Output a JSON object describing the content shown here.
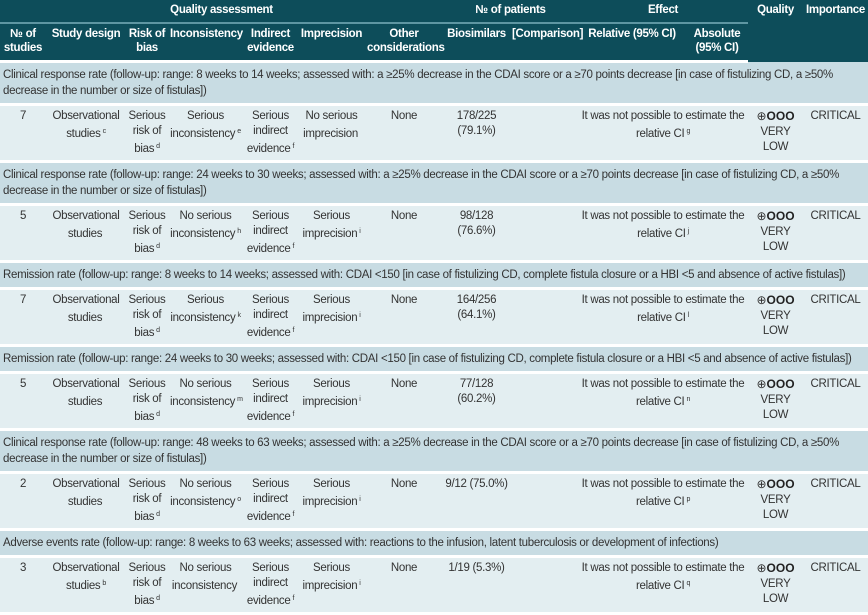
{
  "header": {
    "quality_assessment": "Quality assessment",
    "num_patients": "№ of patients",
    "effect": "Effect",
    "quality": "Quality",
    "importance": "Importance",
    "columns": [
      "№ of studies",
      "Study design",
      "Risk of bias",
      "Inconsistency",
      "Indirect evidence",
      "Imprecision",
      "Other considerations",
      "Biosimilars",
      "[Comparison]",
      "Relative (95% CI)",
      "Absolute (95% CI)"
    ]
  },
  "outcomes": [
    {
      "title": "Clinical response rate (follow-up: range: 8 weeks to 14 weeks; assessed with: a ≥25% decrease in the CDAI score or a ≥70 points decrease [in case of fistulizing CD, a ≥50% decrease in the number or size of fistulas])",
      "studies": "7",
      "design": "Observational studies",
      "design_sup": "c",
      "risk": "Serious risk of bias",
      "risk_sup": "d",
      "inconsistency": "Serious inconsistency",
      "inconsistency_sup": "e",
      "indirect": "Serious indirect evidence",
      "indirect_sup": "f",
      "imprecision": "No serious imprecision",
      "imprecision_sup": "",
      "other": "None",
      "biosimilars": "178/225 (79.1%)",
      "comparison": "",
      "relative": "It was not possible to estimate the relative CI",
      "relative_sup": "g",
      "absolute": "",
      "quality_symbol": "⊕",
      "quality_empty": "OOO",
      "quality": "VERY LOW",
      "importance": "CRITICAL"
    },
    {
      "title": "Clinical response rate (follow-up: range: 24 weeks to 30 weeks; assessed with: a ≥25% decrease in the CDAI score or a ≥70 points decrease [in case of fistulizing CD, a ≥50% decrease in the number or size of fistulas])",
      "studies": "5",
      "design": "Observational studies",
      "design_sup": "",
      "risk": "Serious risk of bias",
      "risk_sup": "d",
      "inconsistency": "No serious inconsistency",
      "inconsistency_sup": "h",
      "indirect": "Serious indirect evidence",
      "indirect_sup": "f",
      "imprecision": "Serious imprecision",
      "imprecision_sup": "i",
      "other": "None",
      "biosimilars": "98/128 (76.6%)",
      "comparison": "",
      "relative": "It was not possible to estimate the relative CI",
      "relative_sup": "j",
      "absolute": "",
      "quality_symbol": "⊕",
      "quality_empty": "OOO",
      "quality": "VERY LOW",
      "importance": "CRITICAL"
    },
    {
      "title": "Remission rate (follow-up: range: 8 weeks to 14 weeks; assessed with: CDAI <150 [in case of fistulizing CD, complete fistula closure or a HBI <5 and absence of active fistulas])",
      "studies": "7",
      "design": "Observational studies",
      "design_sup": "",
      "risk": "Serious risk of bias",
      "risk_sup": "d",
      "inconsistency": "Serious inconsistency",
      "inconsistency_sup": "k",
      "indirect": "Serious indirect evidence",
      "indirect_sup": "f",
      "imprecision": "Serious imprecision",
      "imprecision_sup": "i",
      "other": "None",
      "biosimilars": "164/256 (64.1%)",
      "comparison": "",
      "relative": "It was not possible to estimate the relative CI",
      "relative_sup": "l",
      "absolute": "",
      "quality_symbol": "⊕",
      "quality_empty": "OOO",
      "quality": "VERY LOW",
      "importance": "CRITICAL"
    },
    {
      "title": "Remission rate (follow-up: range: 24 weeks to 30 weeks; assessed with: CDAI <150 [in case of fistulizing CD, complete fistula closure or a HBI <5 and absence of active fistulas])",
      "studies": "5",
      "design": "Observational studies",
      "design_sup": "",
      "risk": "Serious risk of bias",
      "risk_sup": "d",
      "inconsistency": "No serious inconsistency",
      "inconsistency_sup": "m",
      "indirect": "Serious indirect evidence",
      "indirect_sup": "f",
      "imprecision": "Serious imprecision",
      "imprecision_sup": "i",
      "other": "None",
      "biosimilars": "77/128 (60.2%)",
      "comparison": "",
      "relative": "It was not possible to estimate the relative CI",
      "relative_sup": "n",
      "absolute": "",
      "quality_symbol": "⊕",
      "quality_empty": "OOO",
      "quality": "VERY LOW",
      "importance": "CRITICAL"
    },
    {
      "title": "Clinical response rate (follow-up: range: 48 weeks to 63 weeks; assessed with: a ≥25% decrease in the CDAI score or a ≥70 points decrease [in case of fistulizing CD, a ≥50% decrease in the number or size of fistulas])",
      "studies": "2",
      "design": "Observational studies",
      "design_sup": "",
      "risk": "Serious risk of bias",
      "risk_sup": "d",
      "inconsistency": "No serious inconsistency",
      "inconsistency_sup": "o",
      "indirect": "Serious indirect evidence",
      "indirect_sup": "f",
      "imprecision": "Serious imprecision",
      "imprecision_sup": "i",
      "other": "None",
      "biosimilars": "9/12 (75.0%)",
      "comparison": "",
      "relative": "It was not possible to estimate the relative CI",
      "relative_sup": "p",
      "absolute": "",
      "quality_symbol": "⊕",
      "quality_empty": "OOO",
      "quality": "VERY LOW",
      "importance": "CRITICAL"
    },
    {
      "title": "Adverse events rate (follow-up: range: 8 weeks to 63 weeks; assessed with: reactions to the infusion, latent tuberculosis or development of infections)",
      "studies": "3",
      "design": "Observational studies",
      "design_sup": "b",
      "risk": "Serious risk of bias",
      "risk_sup": "d",
      "inconsistency": "No serious inconsistency",
      "inconsistency_sup": "",
      "indirect": "Serious indirect evidence",
      "indirect_sup": "f",
      "imprecision": "Serious imprecision",
      "imprecision_sup": "i",
      "other": "None",
      "biosimilars": "1/19 (5.3%)",
      "comparison": "",
      "relative": "It was not possible to estimate the relative CI",
      "relative_sup": "q",
      "absolute": "",
      "quality_symbol": "⊕",
      "quality_empty": "OOO",
      "quality": "VERY LOW",
      "importance": "CRITICAL"
    }
  ]
}
